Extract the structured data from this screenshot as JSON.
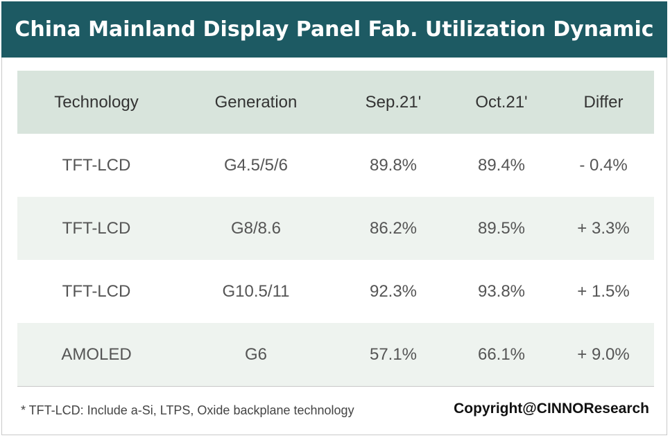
{
  "title": "China Mainland Display Panel Fab. Utilization Dynamic",
  "colors": {
    "title_bar": "#1d5a63",
    "header_row": "#d8e4dc",
    "shaded_row": "#eef3ef"
  },
  "table": {
    "headers": [
      "Technology",
      "Generation",
      "Sep.21'",
      "Oct.21'",
      "Differ"
    ],
    "rows": [
      [
        "TFT-LCD",
        "G4.5/5/6",
        "89.8%",
        "89.4%",
        "- 0.4%"
      ],
      [
        "TFT-LCD",
        "G8/8.6",
        "86.2%",
        "89.5%",
        "+ 3.3%"
      ],
      [
        "TFT-LCD",
        "G10.5/11",
        "92.3%",
        "93.8%",
        "+ 1.5%"
      ],
      [
        "AMOLED",
        "G6",
        "57.1%",
        "66.1%",
        "+ 9.0%"
      ]
    ]
  },
  "footnote": "* TFT-LCD: Include a-Si, LTPS, Oxide backplane technology",
  "copyright": "Copyright@CINNOResearch"
}
